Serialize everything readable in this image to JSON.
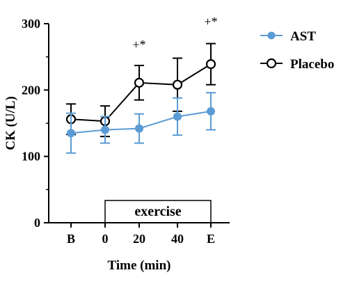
{
  "chart_data": {
    "type": "line",
    "xlabel": "Time (min)",
    "ylabel": "CK (U/L)",
    "categories": [
      "B",
      "0",
      "20",
      "40",
      "E"
    ],
    "ylim": [
      0,
      300
    ],
    "yticks": [
      0,
      100,
      200,
      300
    ],
    "grid": false,
    "legend_position": "top-right",
    "colors": {
      "AST": "#5b9bd5",
      "Placebo": "#000000"
    },
    "series": [
      {
        "name": "AST",
        "marker": "filled-circle",
        "values": [
          135,
          140,
          142,
          160,
          168
        ],
        "errors": [
          30,
          20,
          22,
          28,
          28
        ]
      },
      {
        "name": "Placebo",
        "marker": "open-circle",
        "values": [
          156,
          153,
          211,
          208,
          239
        ],
        "errors": [
          23,
          23,
          26,
          40,
          31
        ]
      }
    ],
    "annotations": [
      {
        "category": "20",
        "text": "+*"
      },
      {
        "category": "E",
        "text": "+*"
      }
    ],
    "bracket": {
      "label": "exercise",
      "from": "0",
      "to": "E"
    }
  }
}
